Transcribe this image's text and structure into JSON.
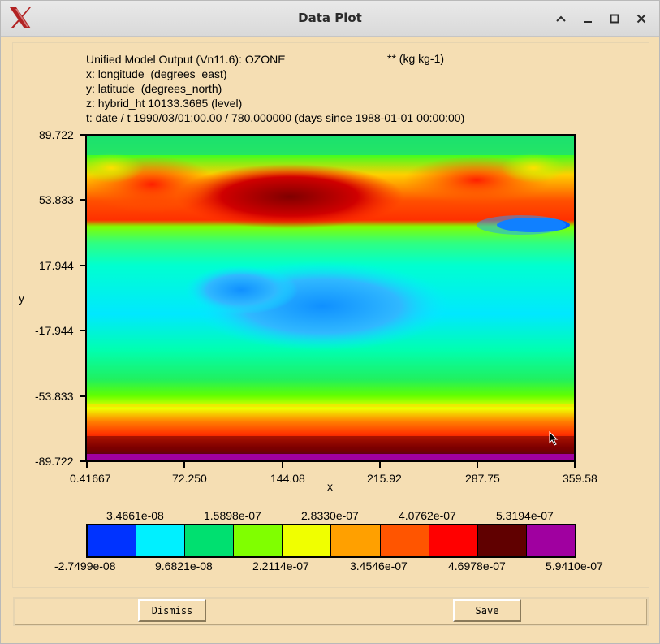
{
  "window": {
    "title": "Data Plot",
    "controls": {
      "minimize": "_",
      "maximize": "□",
      "close": "✕",
      "shade": "^"
    }
  },
  "plot_info": {
    "line1": "Unified Model Output (Vn11.6): OZONE",
    "units": "** (kg kg-1)",
    "line2": "x: longitude  (degrees_east)",
    "line3": "y: latitude  (degrees_north)",
    "line4": "z: hybrid_ht 10133.3685 (level)",
    "line5": "t: date / t 1990/03/01:00.00 / 780.000000 (days since 1988-01-01 00:00:00)"
  },
  "axes": {
    "xlabel": "x",
    "ylabel": "y",
    "yticks": [
      "89.722",
      "53.833",
      "17.944",
      "-17.944",
      "-53.833",
      "-89.722"
    ],
    "xticks": [
      "0.41667",
      "72.250",
      "144.08",
      "215.92",
      "287.75",
      "359.58"
    ]
  },
  "colorbar": {
    "top_labels": [
      "3.4661e-08",
      "1.5898e-07",
      "2.8330e-07",
      "4.0762e-07",
      "5.3194e-07"
    ],
    "bottom_labels": [
      "-2.7499e-08",
      "9.6821e-08",
      "2.2114e-07",
      "3.4546e-07",
      "4.6978e-07",
      "5.9410e-07"
    ],
    "colors": [
      "#0033ff",
      "#00f0ff",
      "#00e070",
      "#80ff00",
      "#f0ff00",
      "#ffa000",
      "#ff5500",
      "#ff0000",
      "#600000",
      "#a000a0"
    ]
  },
  "buttons": {
    "dismiss": "Dismiss",
    "save": "Save"
  },
  "colors": {
    "background": "#f5deb3",
    "titlebar": "#dcdcdc"
  }
}
